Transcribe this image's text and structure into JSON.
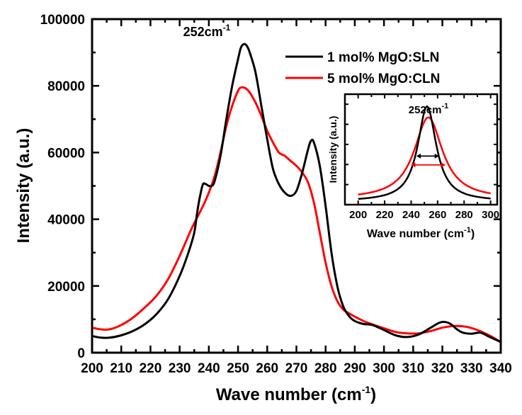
{
  "chart_data": {
    "type": "line",
    "title": "",
    "xlabel": "Wave number (cm",
    "xlabel_sup": "-1",
    "xlabel_end": ")",
    "ylabel": "Intensity (a.u.)",
    "xlim": [
      200,
      340
    ],
    "ylim": [
      0,
      100000
    ],
    "grid": false,
    "legend_position": "top-right",
    "x_ticks": [
      "200",
      "210",
      "220",
      "230",
      "240",
      "250",
      "260",
      "270",
      "280",
      "290",
      "300",
      "310",
      "320",
      "330",
      "340"
    ],
    "x_tick_values": [
      200,
      210,
      220,
      230,
      240,
      250,
      260,
      270,
      280,
      290,
      300,
      310,
      320,
      330,
      340
    ],
    "y_ticks": [
      "0",
      "20000",
      "40000",
      "60000",
      "80000",
      "100000"
    ],
    "y_tick_values": [
      0,
      20000,
      40000,
      60000,
      80000,
      100000
    ],
    "annotation": {
      "text": "252cm",
      "sup": "-1",
      "x": 252
    },
    "series": [
      {
        "name": "1 mol% MgO:SLN",
        "color": "#000000",
        "x": [
          200,
          203,
          206,
          210,
          214,
          218,
          222,
          226,
          230,
          233,
          235,
          236,
          237,
          238,
          239,
          240,
          241,
          242,
          244,
          246,
          248,
          250,
          251,
          252,
          253,
          254,
          256,
          258,
          260,
          262,
          264,
          266,
          268,
          270,
          272,
          274,
          275,
          276,
          278,
          280,
          282,
          284,
          286,
          288,
          290,
          293,
          296,
          300,
          304,
          308,
          312,
          316,
          319,
          321,
          323,
          325,
          327,
          330,
          333,
          336,
          340
        ],
        "y": [
          5000,
          4500,
          4500,
          5200,
          6500,
          8500,
          11500,
          16000,
          23000,
          30000,
          36000,
          42000,
          47000,
          50500,
          50500,
          50000,
          50000,
          51500,
          59000,
          70000,
          80000,
          88000,
          91500,
          92500,
          92000,
          90000,
          84000,
          74000,
          64000,
          55000,
          50500,
          48000,
          47000,
          48500,
          54000,
          61000,
          63500,
          63000,
          56000,
          44000,
          30000,
          20000,
          14000,
          11000,
          9500,
          8600,
          8300,
          6800,
          5200,
          4700,
          5500,
          7500,
          9000,
          9200,
          8500,
          7000,
          6000,
          5700,
          6000,
          4800,
          3200
        ]
      },
      {
        "name": "5 mol% MgO:CLN",
        "color": "#ff0000",
        "x": [
          200,
          203,
          206,
          210,
          214,
          218,
          222,
          226,
          230,
          234,
          238,
          240,
          242,
          244,
          246,
          248,
          250,
          251,
          252,
          253,
          254,
          256,
          258,
          260,
          262,
          264,
          266,
          268,
          270,
          272,
          274,
          276,
          278,
          280,
          282,
          284,
          286,
          288,
          290,
          293,
          296,
          300,
          304,
          308,
          312,
          316,
          320,
          324,
          328,
          332,
          336,
          340
        ],
        "y": [
          7500,
          7000,
          7000,
          8300,
          10500,
          13500,
          17000,
          22000,
          29000,
          37000,
          44000,
          48000,
          53000,
          60000,
          68000,
          74000,
          78500,
          79500,
          79500,
          79000,
          78000,
          75000,
          71000,
          66500,
          63000,
          60000,
          59000,
          57500,
          56000,
          54000,
          51000,
          45000,
          36000,
          27000,
          20000,
          15500,
          13000,
          11800,
          10800,
          9500,
          8500,
          7300,
          6200,
          5800,
          5800,
          6500,
          7500,
          8000,
          7800,
          6800,
          5200,
          3200
        ]
      }
    ],
    "inset": {
      "xlabel": "Wave number (cm",
      "xlabel_sup": "-1",
      "xlabel_end": ")",
      "ylabel": "Intensity (a.u.)",
      "xlim": [
        190,
        305
      ],
      "ylim": [
        0,
        1
      ],
      "x_ticks": [
        "200",
        "220",
        "240",
        "260",
        "280",
        "300"
      ],
      "x_tick_values": [
        200,
        220,
        240,
        260,
        280,
        300
      ],
      "annotation": {
        "text": "252cm",
        "sup": "-1",
        "x": 252
      },
      "fwhm_arrows": [
        {
          "series": "1 mol% MgO:SLN",
          "from": 244,
          "to": 261,
          "level": 0.44,
          "color": "#000000"
        },
        {
          "series": "5 mol% MgO:CLN",
          "from": 240,
          "to": 266,
          "level": 0.36,
          "color": "#ff0000"
        }
      ],
      "series": [
        {
          "name": "1 mol% MgO:SLN",
          "color": "#000000",
          "center": 252,
          "hwhm": 8.5,
          "peak": 0.86,
          "base": 0.03
        },
        {
          "name": "5 mol% MgO:CLN",
          "color": "#ff0000",
          "center": 253,
          "hwhm": 13,
          "peak": 0.74,
          "base": 0.05
        }
      ]
    }
  }
}
